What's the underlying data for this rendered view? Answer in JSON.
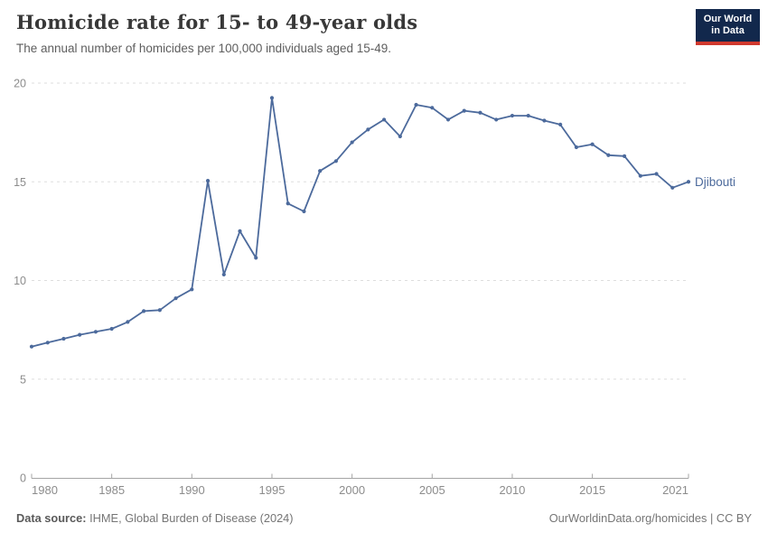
{
  "header": {
    "title": "Homicide rate for 15- to 49-year olds",
    "subtitle": "The annual number of homicides per 100,000 individuals aged 15-49.",
    "logo": {
      "line1": "Our World",
      "line2": "in Data",
      "bg": "#12284C",
      "stripe": "#D0392E"
    }
  },
  "chart_data": {
    "type": "line",
    "title": "Homicide rate for 15- to 49-year olds",
    "xlabel": "",
    "ylabel": "",
    "ylim": [
      0,
      20
    ],
    "yticks": [
      0,
      5,
      10,
      15,
      20
    ],
    "xticks": [
      1980,
      1985,
      1990,
      1995,
      2000,
      2005,
      2010,
      2015,
      2021
    ],
    "grid": "horizontal-dashed",
    "legend_position": "end-of-line",
    "colors": {
      "line": "#4C6A9C",
      "grid": "#dddddd",
      "axis": "#a5a5a5",
      "tick_label": "#8c8c8c"
    },
    "series": [
      {
        "name": "Djibouti",
        "color": "#4C6A9C",
        "x": [
          1980,
          1981,
          1982,
          1983,
          1984,
          1985,
          1986,
          1987,
          1988,
          1989,
          1990,
          1991,
          1992,
          1993,
          1994,
          1995,
          1996,
          1997,
          1998,
          1999,
          2000,
          2001,
          2002,
          2003,
          2004,
          2005,
          2006,
          2007,
          2008,
          2009,
          2010,
          2011,
          2012,
          2013,
          2014,
          2015,
          2016,
          2017,
          2018,
          2019,
          2020,
          2021
        ],
        "values": [
          6.65,
          6.85,
          7.05,
          7.25,
          7.4,
          7.55,
          7.9,
          8.45,
          8.5,
          9.1,
          9.55,
          15.05,
          10.3,
          12.5,
          11.15,
          19.25,
          13.9,
          13.5,
          15.55,
          16.05,
          17.0,
          17.65,
          18.15,
          17.3,
          18.9,
          18.75,
          18.15,
          18.6,
          18.5,
          18.15,
          18.35,
          18.35,
          18.1,
          17.9,
          16.75,
          16.9,
          16.35,
          16.3,
          15.3,
          15.4,
          14.7,
          15.0
        ]
      }
    ]
  },
  "footer": {
    "source_label": "Data source:",
    "source_value": " IHME, Global Burden of Disease (2024)",
    "attribution": "OurWorldinData.org/homicides | CC BY"
  }
}
